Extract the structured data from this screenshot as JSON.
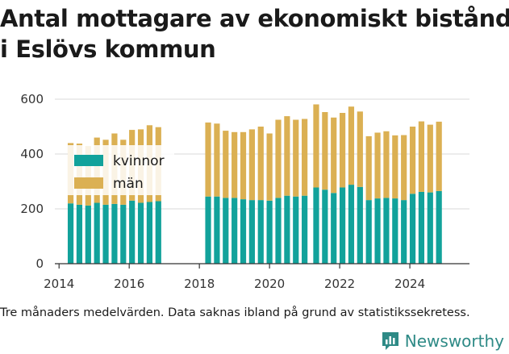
{
  "title_lines": [
    "Antal mottagare av ekonomiskt bistånd",
    "i Eslövs kommun"
  ],
  "footnote": "Tre månaders medelvärden. Data saknas ibland på grund av statistikssekretess.",
  "brand": {
    "name": "Newsworthy",
    "icon": "newsworthy-logo-icon",
    "color": "#2e8a86"
  },
  "chart_data": {
    "type": "bar",
    "stacked": true,
    "x_ticks": [
      2014,
      2016,
      2018,
      2020,
      2022,
      2024
    ],
    "xlim": [
      2013.88,
      2025.7
    ],
    "y_ticks": [
      0,
      200,
      400,
      600
    ],
    "ylim": [
      0,
      600
    ],
    "legend": {
      "placement": "top-left",
      "entries": [
        "kvinnor",
        "män"
      ]
    },
    "series": [
      {
        "name": "kvinnor",
        "color": "#12a29b",
        "values": [
          220,
          215,
          212,
          222,
          215,
          218,
          215,
          230,
          222,
          225,
          228,
          245,
          245,
          240,
          240,
          235,
          232,
          232,
          230,
          240,
          248,
          245,
          248,
          278,
          270,
          258,
          278,
          288,
          280,
          232,
          238,
          240,
          238,
          232,
          255,
          262,
          260,
          265
        ]
      },
      {
        "name": "män",
        "color": "#dbb053",
        "values": [
          220,
          223,
          217,
          238,
          237,
          257,
          237,
          258,
          268,
          280,
          270,
          270,
          266,
          245,
          240,
          245,
          258,
          268,
          245,
          285,
          290,
          280,
          280,
          303,
          283,
          275,
          272,
          285,
          275,
          233,
          240,
          243,
          230,
          237,
          245,
          257,
          247,
          253
        ]
      }
    ],
    "x": [
      2014.33,
      2014.58,
      2014.83,
      2015.08,
      2015.33,
      2015.58,
      2015.83,
      2016.08,
      2016.33,
      2016.58,
      2016.83,
      2018.25,
      2018.5,
      2018.75,
      2019.0,
      2019.25,
      2019.5,
      2019.75,
      2020.0,
      2020.25,
      2020.5,
      2020.75,
      2021.0,
      2021.33,
      2021.58,
      2021.83,
      2022.08,
      2022.33,
      2022.58,
      2022.83,
      2023.08,
      2023.33,
      2023.58,
      2023.83,
      2024.08,
      2024.33,
      2024.58,
      2024.83
    ]
  }
}
